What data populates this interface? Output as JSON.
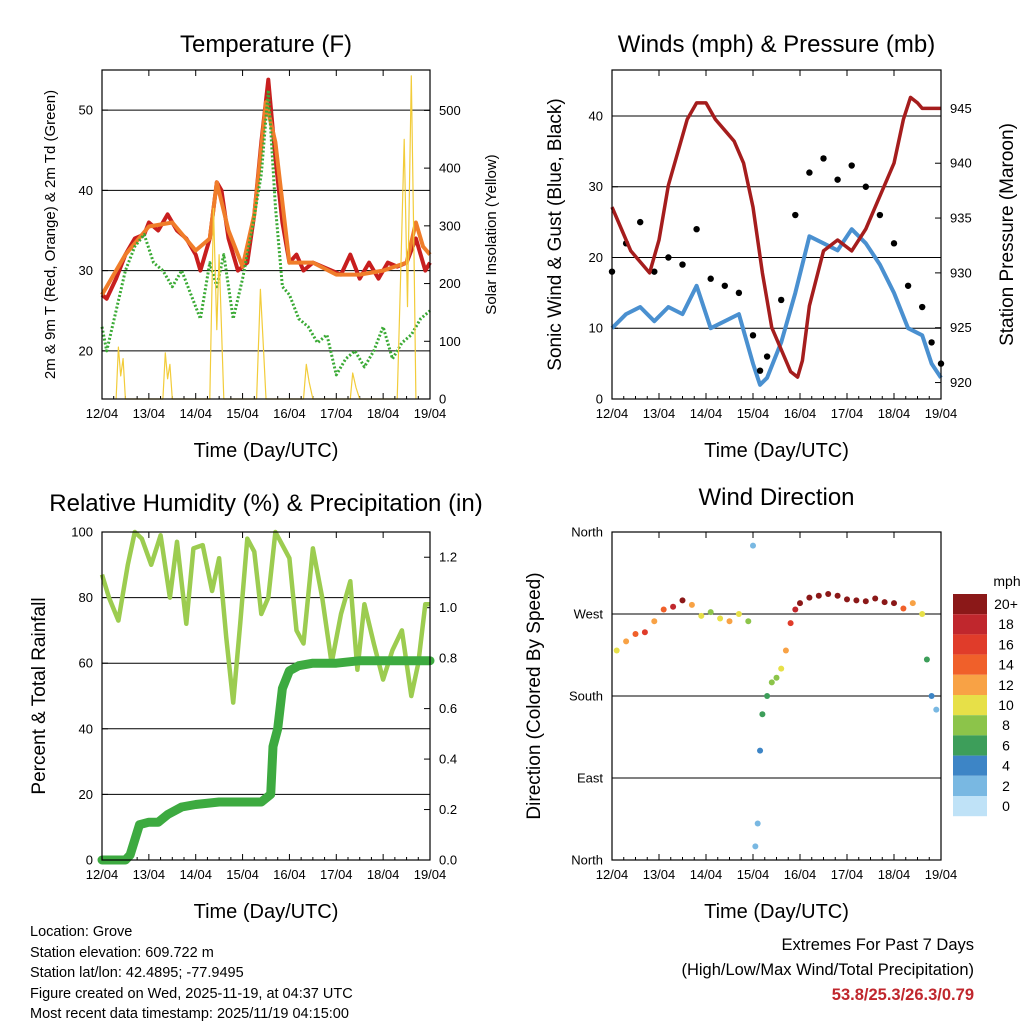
{
  "chart_data": [
    {
      "type": "line",
      "title": "Temperature (F)",
      "xlabel": "Time (Day/UTC)",
      "ylabel": "2m & 9m T (Red, Orange) & 2m Td (Green)",
      "y2label": "Solar Insolation (Yellow)",
      "ylim": [
        14,
        55
      ],
      "y2lim": [
        0,
        570
      ],
      "yticks": [
        20,
        30,
        40,
        50
      ],
      "y2ticks": [
        0,
        100,
        200,
        300,
        400,
        500
      ],
      "xlim": [
        0,
        7
      ],
      "categories": [
        "12/04",
        "13/04",
        "14/04",
        "15/04",
        "16/04",
        "17/04",
        "18/04",
        "19/04"
      ],
      "series": [
        {
          "name": "2m T",
          "color": "#c81e1e",
          "x": [
            0,
            0.1,
            0.3,
            0.5,
            0.7,
            0.9,
            1.0,
            1.2,
            1.4,
            1.6,
            1.8,
            2.0,
            2.1,
            2.3,
            2.45,
            2.55,
            2.7,
            2.9,
            3.1,
            3.25,
            3.4,
            3.55,
            3.7,
            3.85,
            4.0,
            4.15,
            4.3,
            4.5,
            4.7,
            4.9,
            5.1,
            5.3,
            5.5,
            5.7,
            5.9,
            6.1,
            6.3,
            6.5,
            6.7,
            6.8,
            6.9,
            7.0
          ],
          "values": [
            27,
            26.5,
            29,
            32,
            34,
            34.5,
            36,
            35,
            37,
            35,
            34,
            32,
            30,
            34,
            41,
            40,
            34,
            30,
            31,
            37,
            46,
            53.8,
            44,
            36,
            31,
            32,
            30,
            31,
            30.5,
            30,
            29.5,
            32,
            29,
            31,
            29,
            31,
            30.5,
            31,
            34,
            32,
            30,
            31
          ]
        },
        {
          "name": "9m T",
          "color": "#f07d2a",
          "x": [
            0,
            0.5,
            1.0,
            1.5,
            2.0,
            2.3,
            2.45,
            2.7,
            3.0,
            3.25,
            3.5,
            3.7,
            4.0,
            4.5,
            5.0,
            5.5,
            6.0,
            6.5,
            6.7,
            6.85,
            7.0
          ],
          "values": [
            27,
            32,
            35.5,
            36,
            32.5,
            34,
            41,
            35,
            30.5,
            37,
            51,
            46,
            31,
            31,
            29.5,
            29.5,
            30,
            31,
            36,
            33,
            32
          ]
        },
        {
          "name": "2m Td",
          "color": "#3aaa35",
          "x": [
            0,
            0.1,
            0.3,
            0.5,
            0.7,
            0.9,
            1.1,
            1.3,
            1.5,
            1.7,
            1.9,
            2.1,
            2.3,
            2.45,
            2.6,
            2.8,
            3.0,
            3.2,
            3.4,
            3.55,
            3.7,
            3.85,
            4.0,
            4.2,
            4.4,
            4.6,
            4.8,
            5.0,
            5.2,
            5.4,
            5.6,
            5.8,
            6.0,
            6.2,
            6.4,
            6.6,
            6.8,
            7.0
          ],
          "values": [
            23,
            20,
            25,
            30,
            33,
            34.5,
            31,
            30,
            28,
            30,
            27,
            24,
            31,
            28,
            32,
            24,
            29,
            35,
            42,
            52.5,
            38,
            28,
            27,
            24,
            23,
            21,
            22,
            17,
            19,
            20,
            18,
            20,
            23,
            19,
            21,
            22,
            24,
            25
          ]
        },
        {
          "name": "Solar Insolation",
          "color": "#f2cc3a",
          "axis": "right",
          "x": [
            0.3,
            0.35,
            0.4,
            0.45,
            0.5,
            1.3,
            1.35,
            1.4,
            1.45,
            1.5,
            2.3,
            2.38,
            2.45,
            2.5,
            2.6,
            3.3,
            3.38,
            3.45,
            3.5,
            4.3,
            4.36,
            4.42,
            4.5,
            5.3,
            5.35,
            5.42,
            5.5,
            6.3,
            6.38,
            6.45,
            6.52,
            6.6,
            6.66,
            6.7
          ],
          "values": [
            0,
            90,
            40,
            70,
            0,
            0,
            80,
            35,
            60,
            0,
            0,
            330,
            120,
            250,
            0,
            0,
            190,
            80,
            0,
            0,
            60,
            30,
            0,
            0,
            45,
            20,
            0,
            0,
            230,
            450,
            160,
            560,
            240,
            0
          ]
        }
      ]
    },
    {
      "type": "line",
      "title": "Winds (mph) & Pressure (mb)",
      "xlabel": "Time (Day/UTC)",
      "ylabel": "Sonic Wind & Gust (Blue, Black)",
      "y2label": "Station Pressure (Maroon)",
      "ylim": [
        0,
        46.5
      ],
      "y2lim": [
        918.5,
        948.5
      ],
      "yticks": [
        0,
        10,
        20,
        30,
        40
      ],
      "y2ticks": [
        920,
        925,
        930,
        935,
        940,
        945
      ],
      "xlim": [
        0,
        7
      ],
      "categories": [
        "12/04",
        "13/04",
        "14/04",
        "15/04",
        "16/04",
        "17/04",
        "18/04",
        "19/04"
      ],
      "series": [
        {
          "name": "Sonic Wind",
          "color": "#4a90d0",
          "x": [
            0,
            0.3,
            0.6,
            0.9,
            1.2,
            1.5,
            1.8,
            2.1,
            2.4,
            2.7,
            3.0,
            3.15,
            3.3,
            3.6,
            3.9,
            4.2,
            4.5,
            4.8,
            5.1,
            5.4,
            5.7,
            6.0,
            6.3,
            6.6,
            6.8,
            7.0
          ],
          "values": [
            10,
            12,
            13,
            11,
            13,
            12,
            16,
            10,
            11,
            12,
            5,
            2,
            3,
            8,
            15,
            23,
            22,
            21,
            24,
            22,
            19,
            15,
            10,
            9,
            5,
            3
          ]
        },
        {
          "name": "Gust",
          "color": "#000000",
          "x": [
            0,
            0.3,
            0.6,
            0.9,
            1.2,
            1.5,
            1.8,
            2.1,
            2.4,
            2.7,
            3.0,
            3.15,
            3.3,
            3.6,
            3.9,
            4.2,
            4.5,
            4.8,
            5.1,
            5.4,
            5.7,
            6.0,
            6.3,
            6.6,
            6.8,
            7.0
          ],
          "values": [
            18,
            22,
            25,
            18,
            20,
            19,
            24,
            17,
            16,
            15,
            9,
            4,
            6,
            14,
            26,
            32,
            34,
            31,
            33,
            30,
            26,
            22,
            16,
            13,
            8,
            5
          ]
        },
        {
          "name": "Station Pressure",
          "color": "#a51d1d",
          "axis": "right",
          "x": [
            0,
            0.2,
            0.4,
            0.6,
            0.8,
            1.0,
            1.2,
            1.4,
            1.6,
            1.8,
            2.0,
            2.2,
            2.4,
            2.6,
            2.8,
            3.0,
            3.2,
            3.4,
            3.6,
            3.8,
            3.95,
            4.05,
            4.2,
            4.5,
            4.8,
            5.1,
            5.4,
            5.7,
            6.0,
            6.2,
            6.35,
            6.5,
            6.6,
            6.8,
            7.0
          ],
          "values": [
            936,
            934,
            932,
            931,
            930,
            933,
            938,
            941,
            944,
            945.5,
            945.5,
            944,
            943,
            942,
            940,
            936,
            930,
            925,
            923,
            921,
            920.5,
            922,
            927,
            932,
            933,
            932,
            934,
            937,
            940,
            944,
            946,
            945.5,
            945,
            945,
            945
          ]
        }
      ]
    },
    {
      "type": "line",
      "title": "Relative Humidity (%) & Precipitation (in)",
      "xlabel": "Time (Day/UTC)",
      "ylabel": "Percent & Total Rainfall",
      "ylim": [
        0,
        100
      ],
      "y2lim": [
        0,
        1.3
      ],
      "yticks": [
        0,
        20,
        40,
        60,
        80,
        100
      ],
      "y2ticks": [
        0.0,
        0.2,
        0.4,
        0.6,
        0.8,
        1.0,
        1.2
      ],
      "xlim": [
        0,
        7
      ],
      "categories": [
        "12/04",
        "13/04",
        "14/04",
        "15/04",
        "16/04",
        "17/04",
        "18/04",
        "19/04"
      ],
      "series": [
        {
          "name": "Relative Humidity",
          "color": "#9ccc50",
          "x": [
            0,
            0.15,
            0.35,
            0.55,
            0.7,
            0.85,
            1.05,
            1.25,
            1.45,
            1.6,
            1.8,
            1.95,
            2.15,
            2.35,
            2.5,
            2.65,
            2.8,
            2.95,
            3.1,
            3.25,
            3.4,
            3.55,
            3.7,
            3.85,
            4.0,
            4.15,
            4.3,
            4.5,
            4.7,
            4.9,
            5.1,
            5.3,
            5.45,
            5.6,
            5.8,
            6.0,
            6.2,
            6.4,
            6.6,
            6.75,
            6.9,
            7.0
          ],
          "values": [
            87,
            80,
            73,
            90,
            100,
            98,
            90,
            99,
            80,
            97,
            72,
            95,
            96,
            82,
            92,
            68,
            48,
            72,
            98,
            94,
            75,
            80,
            100,
            96,
            92,
            70,
            66,
            95,
            80,
            60,
            75,
            85,
            58,
            78,
            66,
            55,
            64,
            70,
            50,
            60,
            78,
            78
          ]
        },
        {
          "name": "Total Rainfall",
          "color": "#3daa40",
          "axis": "right",
          "x": [
            0,
            0.5,
            0.6,
            0.8,
            1.0,
            1.2,
            1.4,
            1.7,
            2.0,
            2.5,
            3.0,
            3.4,
            3.6,
            3.65,
            3.75,
            3.85,
            4.0,
            4.2,
            4.5,
            5.0,
            5.5,
            6.0,
            6.5,
            7.0
          ],
          "values": [
            0,
            0,
            0.02,
            0.14,
            0.15,
            0.15,
            0.18,
            0.21,
            0.22,
            0.23,
            0.23,
            0.23,
            0.26,
            0.45,
            0.52,
            0.68,
            0.75,
            0.77,
            0.78,
            0.78,
            0.79,
            0.79,
            0.79,
            0.79
          ]
        }
      ]
    },
    {
      "type": "scatter",
      "title": "Wind Direction",
      "xlabel": "Time (Day/UTC)",
      "ylabel": "Direction (Colored By Speed)",
      "ytick_labels": [
        "North",
        "East",
        "South",
        "West",
        "North"
      ],
      "ylim": [
        0,
        360
      ],
      "xlim": [
        0,
        7
      ],
      "categories": [
        "12/04",
        "13/04",
        "14/04",
        "15/04",
        "16/04",
        "17/04",
        "18/04",
        "19/04"
      ],
      "series": [
        {
          "name": "Direction",
          "x": [
            0.1,
            0.3,
            0.5,
            0.7,
            0.9,
            1.1,
            1.3,
            1.5,
            1.7,
            1.9,
            2.1,
            2.3,
            2.5,
            2.7,
            2.9,
            3.0,
            3.05,
            3.1,
            3.15,
            3.2,
            3.3,
            3.4,
            3.5,
            3.6,
            3.7,
            3.8,
            3.9,
            4.0,
            4.2,
            4.4,
            4.6,
            4.8,
            5.0,
            5.2,
            5.4,
            5.6,
            5.8,
            6.0,
            6.2,
            6.4,
            6.6,
            6.7,
            6.8,
            6.9
          ],
          "values": [
            230,
            240,
            248,
            250,
            262,
            275,
            278,
            285,
            280,
            268,
            272,
            265,
            262,
            270,
            262,
            345,
            15,
            40,
            120,
            160,
            180,
            195,
            200,
            210,
            230,
            260,
            275,
            282,
            288,
            290,
            292,
            290,
            286,
            285,
            284,
            287,
            283,
            282,
            276,
            282,
            270,
            220,
            180,
            165
          ],
          "speeds": [
            10,
            12,
            14,
            16,
            12,
            14,
            18,
            20,
            12,
            10,
            8,
            10,
            12,
            10,
            8,
            3,
            2,
            3,
            4,
            6,
            7,
            8,
            8,
            10,
            12,
            16,
            18,
            20,
            20,
            20,
            20,
            20,
            20,
            20,
            20,
            20,
            20,
            20,
            14,
            12,
            10,
            6,
            4,
            3
          ]
        }
      ],
      "legend": {
        "title": "mph",
        "labels": [
          "20+",
          "18",
          "16",
          "14",
          "12",
          "10",
          "8",
          "6",
          "4",
          "2",
          "0"
        ],
        "colors": [
          "#8b1818",
          "#c0272d",
          "#e03c2a",
          "#f0602a",
          "#f8a245",
          "#e7e048",
          "#8cc44a",
          "#3d9e5a",
          "#3d85c6",
          "#79b8e2",
          "#bfe2f7"
        ]
      }
    }
  ],
  "footer": {
    "location": "Location: Grove",
    "elevation": "Station elevation: 609.722 m",
    "latlon": "Station lat/lon: 42.4895; -77.9495",
    "created": "Figure created on Wed, 2025-11-19, at 04:37 UTC",
    "recent": "Most recent data timestamp: 2025/11/19 04:15:00",
    "extremes_title": "Extremes For Past 7 Days",
    "extremes_sub": "(High/Low/Max Wind/Total Precipitation)",
    "extremes_values": "53.8/25.3/26.3/0.79"
  }
}
